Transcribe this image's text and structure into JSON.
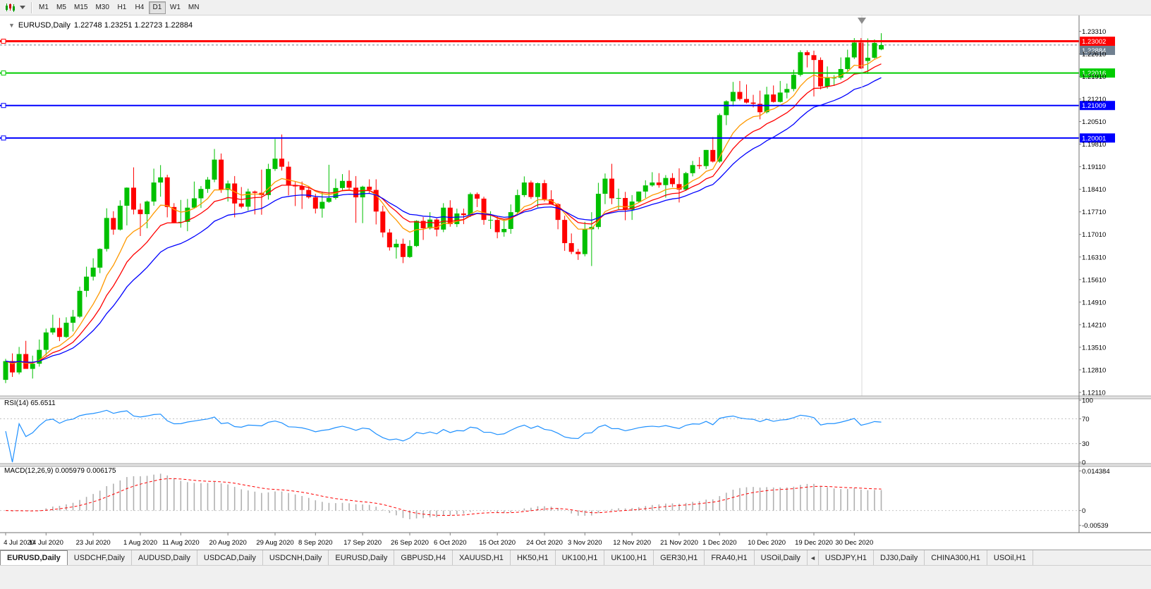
{
  "toolbar": {
    "timeframes": [
      {
        "label": "M1",
        "active": false
      },
      {
        "label": "M5",
        "active": false
      },
      {
        "label": "M15",
        "active": false
      },
      {
        "label": "M30",
        "active": false
      },
      {
        "label": "H1",
        "active": false
      },
      {
        "label": "H4",
        "active": false
      },
      {
        "label": "D1",
        "active": true
      },
      {
        "label": "W1",
        "active": false
      },
      {
        "label": "MN",
        "active": false
      }
    ]
  },
  "chart_header": {
    "collapse_glyph": "▼",
    "symbol_period": "EURUSD,Daily",
    "ohlc_values": "1.22748 1.23251 1.22723 1.22884"
  },
  "chart_data": {
    "type": "candlestick",
    "symbol": "EURUSD",
    "period": "Daily",
    "last_bar": {
      "open": 1.22748,
      "high": 1.23251,
      "low": 1.22723,
      "close": 1.22884
    },
    "up_color": "#00C000",
    "down_color": "#FF0000",
    "y_axis": {
      "min": 1.12,
      "max": 1.238,
      "tick_labels": [
        "1.23310",
        "1.22610",
        "1.21910",
        "1.21210",
        "1.20510",
        "1.19810",
        "1.19110",
        "1.18410",
        "1.17710",
        "1.17010",
        "1.16310",
        "1.15610",
        "1.14910",
        "1.14210",
        "1.13510",
        "1.12810",
        "1.12110"
      ]
    },
    "x_axis": {
      "labels": [
        {
          "index": 0,
          "text": "4 Jul 2020"
        },
        {
          "index": 6,
          "text": "14 Jul 2020"
        },
        {
          "index": 13,
          "text": "23 Jul 2020"
        },
        {
          "index": 20,
          "text": "1 Aug 2020"
        },
        {
          "index": 26,
          "text": "11 Aug 2020"
        },
        {
          "index": 33,
          "text": "20 Aug 2020"
        },
        {
          "index": 40,
          "text": "29 Aug 2020"
        },
        {
          "index": 46,
          "text": "8 Sep 2020"
        },
        {
          "index": 53,
          "text": "17 Sep 2020"
        },
        {
          "index": 60,
          "text": "26 Sep 2020"
        },
        {
          "index": 66,
          "text": "6 Oct 2020"
        },
        {
          "index": 73,
          "text": "15 Oct 2020"
        },
        {
          "index": 80,
          "text": "24 Oct 2020"
        },
        {
          "index": 86,
          "text": "3 Nov 2020"
        },
        {
          "index": 93,
          "text": "12 Nov 2020"
        },
        {
          "index": 100,
          "text": "21 Nov 2020"
        },
        {
          "index": 106,
          "text": "1 Dec 2020"
        },
        {
          "index": 113,
          "text": "10 Dec 2020"
        },
        {
          "index": 120,
          "text": "19 Dec 2020"
        },
        {
          "index": 126,
          "text": "30 Dec 2020"
        }
      ]
    },
    "candles": [
      [
        1.125,
        1.1315,
        1.124,
        1.1308
      ],
      [
        1.1308,
        1.1332,
        1.1259,
        1.1273
      ],
      [
        1.1273,
        1.1352,
        1.1267,
        1.133
      ],
      [
        1.133,
        1.1371,
        1.1321,
        1.1284
      ],
      [
        1.1284,
        1.1325,
        1.1254,
        1.13
      ],
      [
        1.13,
        1.1375,
        1.1291,
        1.1343
      ],
      [
        1.1343,
        1.1409,
        1.1325,
        1.1397
      ],
      [
        1.1397,
        1.1452,
        1.139,
        1.1411
      ],
      [
        1.1411,
        1.1442,
        1.137,
        1.1383
      ],
      [
        1.1383,
        1.1444,
        1.138,
        1.1427
      ],
      [
        1.1427,
        1.1467,
        1.14,
        1.1446
      ],
      [
        1.1446,
        1.1539,
        1.1442,
        1.1526
      ],
      [
        1.1526,
        1.1601,
        1.1507,
        1.157
      ],
      [
        1.157,
        1.1627,
        1.1558,
        1.1598
      ],
      [
        1.1598,
        1.1658,
        1.1581,
        1.1656
      ],
      [
        1.1656,
        1.1782,
        1.1648,
        1.1752
      ],
      [
        1.1752,
        1.1773,
        1.17,
        1.1716
      ],
      [
        1.1716,
        1.1807,
        1.1713,
        1.179
      ],
      [
        1.179,
        1.1847,
        1.1729,
        1.1846
      ],
      [
        1.1846,
        1.1909,
        1.1763,
        1.1778
      ],
      [
        1.1778,
        1.1797,
        1.1696,
        1.1764
      ],
      [
        1.1764,
        1.1806,
        1.172,
        1.1803
      ],
      [
        1.1803,
        1.1905,
        1.179,
        1.1862
      ],
      [
        1.1862,
        1.1916,
        1.1818,
        1.1878
      ],
      [
        1.1878,
        1.1886,
        1.1754,
        1.1786
      ],
      [
        1.1786,
        1.1798,
        1.1736,
        1.1738
      ],
      [
        1.1738,
        1.1808,
        1.1722,
        1.174
      ],
      [
        1.174,
        1.1811,
        1.1711,
        1.1784
      ],
      [
        1.1784,
        1.1865,
        1.1781,
        1.1813
      ],
      [
        1.1813,
        1.1851,
        1.1783,
        1.1842
      ],
      [
        1.1842,
        1.1879,
        1.183,
        1.1871
      ],
      [
        1.1871,
        1.1966,
        1.1863,
        1.1933
      ],
      [
        1.1933,
        1.1952,
        1.183,
        1.1839
      ],
      [
        1.1839,
        1.1868,
        1.1803,
        1.1859
      ],
      [
        1.1859,
        1.1882,
        1.1754,
        1.1797
      ],
      [
        1.1797,
        1.1848,
        1.1782,
        1.1787
      ],
      [
        1.1787,
        1.1843,
        1.1775,
        1.1834
      ],
      [
        1.1834,
        1.1837,
        1.1763,
        1.183
      ],
      [
        1.183,
        1.1902,
        1.1762,
        1.1823
      ],
      [
        1.1823,
        1.192,
        1.1809,
        1.1904
      ],
      [
        1.1904,
        1.1997,
        1.1898,
        1.1936
      ],
      [
        1.1936,
        1.2011,
        1.1899,
        1.1911
      ],
      [
        1.1911,
        1.1927,
        1.1822,
        1.1854
      ],
      [
        1.1854,
        1.1864,
        1.1789,
        1.185
      ],
      [
        1.185,
        1.1865,
        1.178,
        1.1839
      ],
      [
        1.1839,
        1.1849,
        1.1812,
        1.1816
      ],
      [
        1.1816,
        1.1827,
        1.1766,
        1.1781
      ],
      [
        1.1781,
        1.1834,
        1.1753,
        1.1802
      ],
      [
        1.1802,
        1.1917,
        1.1799,
        1.1814
      ],
      [
        1.1814,
        1.1874,
        1.1809,
        1.1845
      ],
      [
        1.1845,
        1.1888,
        1.1835,
        1.1867
      ],
      [
        1.1867,
        1.19,
        1.1838,
        1.1846
      ],
      [
        1.1846,
        1.1882,
        1.1737,
        1.1816
      ],
      [
        1.1816,
        1.1852,
        1.1736,
        1.1849
      ],
      [
        1.1849,
        1.1872,
        1.1827,
        1.1839
      ],
      [
        1.1839,
        1.1872,
        1.1732,
        1.1772
      ],
      [
        1.1772,
        1.179,
        1.1692,
        1.1707
      ],
      [
        1.1707,
        1.1718,
        1.1651,
        1.1661
      ],
      [
        1.1661,
        1.1686,
        1.1626,
        1.1672
      ],
      [
        1.1672,
        1.1688,
        1.1612,
        1.1631
      ],
      [
        1.1631,
        1.1683,
        1.1628,
        1.1665
      ],
      [
        1.1665,
        1.1745,
        1.1662,
        1.1743
      ],
      [
        1.1743,
        1.1755,
        1.1684,
        1.172
      ],
      [
        1.172,
        1.177,
        1.1716,
        1.1747
      ],
      [
        1.1747,
        1.1751,
        1.1695,
        1.1716
      ],
      [
        1.1716,
        1.1798,
        1.1708,
        1.1784
      ],
      [
        1.1784,
        1.1807,
        1.1725,
        1.1733
      ],
      [
        1.1733,
        1.1781,
        1.1724,
        1.1766
      ],
      [
        1.1766,
        1.1781,
        1.1733,
        1.1761
      ],
      [
        1.1761,
        1.1831,
        1.1755,
        1.1826
      ],
      [
        1.1826,
        1.1831,
        1.1786,
        1.1812
      ],
      [
        1.1812,
        1.1818,
        1.1731,
        1.1746
      ],
      [
        1.1746,
        1.1773,
        1.1718,
        1.1746
      ],
      [
        1.1746,
        1.1758,
        1.1689,
        1.1708
      ],
      [
        1.1708,
        1.1747,
        1.1694,
        1.1718
      ],
      [
        1.1718,
        1.1794,
        1.1703,
        1.177
      ],
      [
        1.177,
        1.184,
        1.176,
        1.1823
      ],
      [
        1.1823,
        1.1881,
        1.1817,
        1.1862
      ],
      [
        1.1862,
        1.1868,
        1.1811,
        1.1817
      ],
      [
        1.1817,
        1.1862,
        1.1785,
        1.186
      ],
      [
        1.186,
        1.187,
        1.1803,
        1.181
      ],
      [
        1.181,
        1.1838,
        1.1794,
        1.1795
      ],
      [
        1.1795,
        1.1798,
        1.1717,
        1.1746
      ],
      [
        1.1746,
        1.1759,
        1.165,
        1.1674
      ],
      [
        1.1674,
        1.1704,
        1.164,
        1.1647
      ],
      [
        1.1647,
        1.1656,
        1.1622,
        1.164
      ],
      [
        1.164,
        1.174,
        1.1633,
        1.1717
      ],
      [
        1.1717,
        1.177,
        1.1603,
        1.1724
      ],
      [
        1.1724,
        1.1861,
        1.1717,
        1.1827
      ],
      [
        1.1827,
        1.189,
        1.1795,
        1.1874
      ],
      [
        1.1874,
        1.192,
        1.1795,
        1.1813
      ],
      [
        1.1813,
        1.1843,
        1.1779,
        1.1814
      ],
      [
        1.1814,
        1.1833,
        1.1745,
        1.1778
      ],
      [
        1.1778,
        1.1823,
        1.1746,
        1.1803
      ],
      [
        1.1803,
        1.1834,
        1.1799,
        1.1834
      ],
      [
        1.1834,
        1.1869,
        1.1814,
        1.1853
      ],
      [
        1.1853,
        1.1894,
        1.1849,
        1.1862
      ],
      [
        1.1862,
        1.1891,
        1.1846,
        1.1854
      ],
      [
        1.1854,
        1.1885,
        1.1815,
        1.1876
      ],
      [
        1.1876,
        1.1891,
        1.1848,
        1.1857
      ],
      [
        1.1857,
        1.1906,
        1.18,
        1.184
      ],
      [
        1.184,
        1.1895,
        1.1836,
        1.1891
      ],
      [
        1.1891,
        1.1929,
        1.1881,
        1.1916
      ],
      [
        1.1916,
        1.1941,
        1.1904,
        1.1913
      ],
      [
        1.1913,
        1.1963,
        1.1904,
        1.1963
      ],
      [
        1.1963,
        1.2003,
        1.1924,
        1.1927
      ],
      [
        1.1927,
        1.2076,
        1.1923,
        1.2071
      ],
      [
        1.2071,
        1.2117,
        1.204,
        1.2114
      ],
      [
        1.2114,
        1.2174,
        1.2098,
        1.2143
      ],
      [
        1.2143,
        1.2177,
        1.2116,
        1.2121
      ],
      [
        1.2121,
        1.2166,
        1.2107,
        1.211
      ],
      [
        1.211,
        1.2134,
        1.2095,
        1.2106
      ],
      [
        1.2106,
        1.2147,
        1.2058,
        1.208
      ],
      [
        1.208,
        1.2159,
        1.2076,
        1.2135
      ],
      [
        1.2135,
        1.2163,
        1.211,
        1.2112
      ],
      [
        1.2112,
        1.2177,
        1.211,
        1.2141
      ],
      [
        1.2141,
        1.2169,
        1.2123,
        1.2152
      ],
      [
        1.2152,
        1.2212,
        1.2145,
        1.2196
      ],
      [
        1.2196,
        1.2272,
        1.2191,
        1.2266
      ],
      [
        1.2266,
        1.2272,
        1.2219,
        1.2257
      ],
      [
        1.2257,
        1.2271,
        1.2129,
        1.2242
      ],
      [
        1.2242,
        1.225,
        1.2151,
        1.216
      ],
      [
        1.216,
        1.2222,
        1.2153,
        1.2187
      ],
      [
        1.2187,
        1.2195,
        1.2162,
        1.2187
      ],
      [
        1.2187,
        1.225,
        1.2181,
        1.2214
      ],
      [
        1.2214,
        1.2274,
        1.2208,
        1.225
      ],
      [
        1.225,
        1.231,
        1.2245,
        1.2296
      ],
      [
        1.2296,
        1.231,
        1.2214,
        1.2216
      ],
      [
        1.2239,
        1.2309,
        1.2199,
        1.2249
      ],
      [
        1.2249,
        1.2306,
        1.2246,
        1.2295
      ],
      [
        1.22748,
        1.23251,
        1.22723,
        1.22884
      ]
    ],
    "moving_averages": [
      {
        "method": "ema",
        "period": 8,
        "color": "#FF9900"
      },
      {
        "method": "ema",
        "period": 13,
        "color": "#FF0000"
      },
      {
        "method": "ema",
        "period": 21,
        "color": "#0000FF"
      }
    ],
    "horizontal_lines": [
      {
        "price": 1.23002,
        "label": "1.23002",
        "color": "#FF0000",
        "width": 3
      },
      {
        "price": 1.22016,
        "label": "1.22016",
        "color": "#00CC00",
        "width": 2
      },
      {
        "price": 1.21009,
        "label": "1.21009",
        "color": "#0000FF",
        "width": 2
      },
      {
        "price": 1.20001,
        "label": "1.20001",
        "color": "#0000FF",
        "width": 2
      }
    ],
    "bid": {
      "price": 1.22884,
      "label": "1.22884",
      "color": "#708090"
    },
    "indicators": [
      {
        "name": "RSI",
        "display": "RSI(14) 65.6511",
        "color": "#1E90FF",
        "levels": [
          70,
          30
        ],
        "axis_labels": [
          "100",
          "70",
          "30",
          "0"
        ],
        "range": {
          "min": 0,
          "max": 100
        }
      },
      {
        "name": "MACD",
        "display": "MACD(12,26,9) 0.005979 0.006175",
        "histogram_color": "#B0B0B0",
        "signal_color": "#FF0000",
        "axis_labels": [
          "0.014384",
          "0",
          "-0.00539"
        ],
        "range": {
          "min": -0.0075,
          "max": 0.0155
        }
      }
    ]
  },
  "tab_bar": {
    "items": [
      {
        "label": "EURUSD,Daily",
        "active": true
      },
      {
        "label": "USDCHF,Daily"
      },
      {
        "label": "AUDUSD,Daily"
      },
      {
        "label": "USDCAD,Daily"
      },
      {
        "label": "USDCNH,Daily"
      },
      {
        "label": "EURUSD,Daily"
      },
      {
        "label": "GBPUSD,H4"
      },
      {
        "label": "XAUUSD,H1"
      },
      {
        "label": "HK50,H1"
      },
      {
        "label": "UK100,H1"
      },
      {
        "label": "UK100,H1"
      },
      {
        "label": "GER30,H1"
      },
      {
        "label": "FRA40,H1"
      },
      {
        "label": "USOil,Daily"
      },
      {
        "type": "scroll",
        "glyph": "◄"
      },
      {
        "label": "USDJPY,H1"
      },
      {
        "label": "DJ30,Daily"
      },
      {
        "label": "CHINA300,H1"
      },
      {
        "label": "USOil,H1"
      }
    ]
  }
}
